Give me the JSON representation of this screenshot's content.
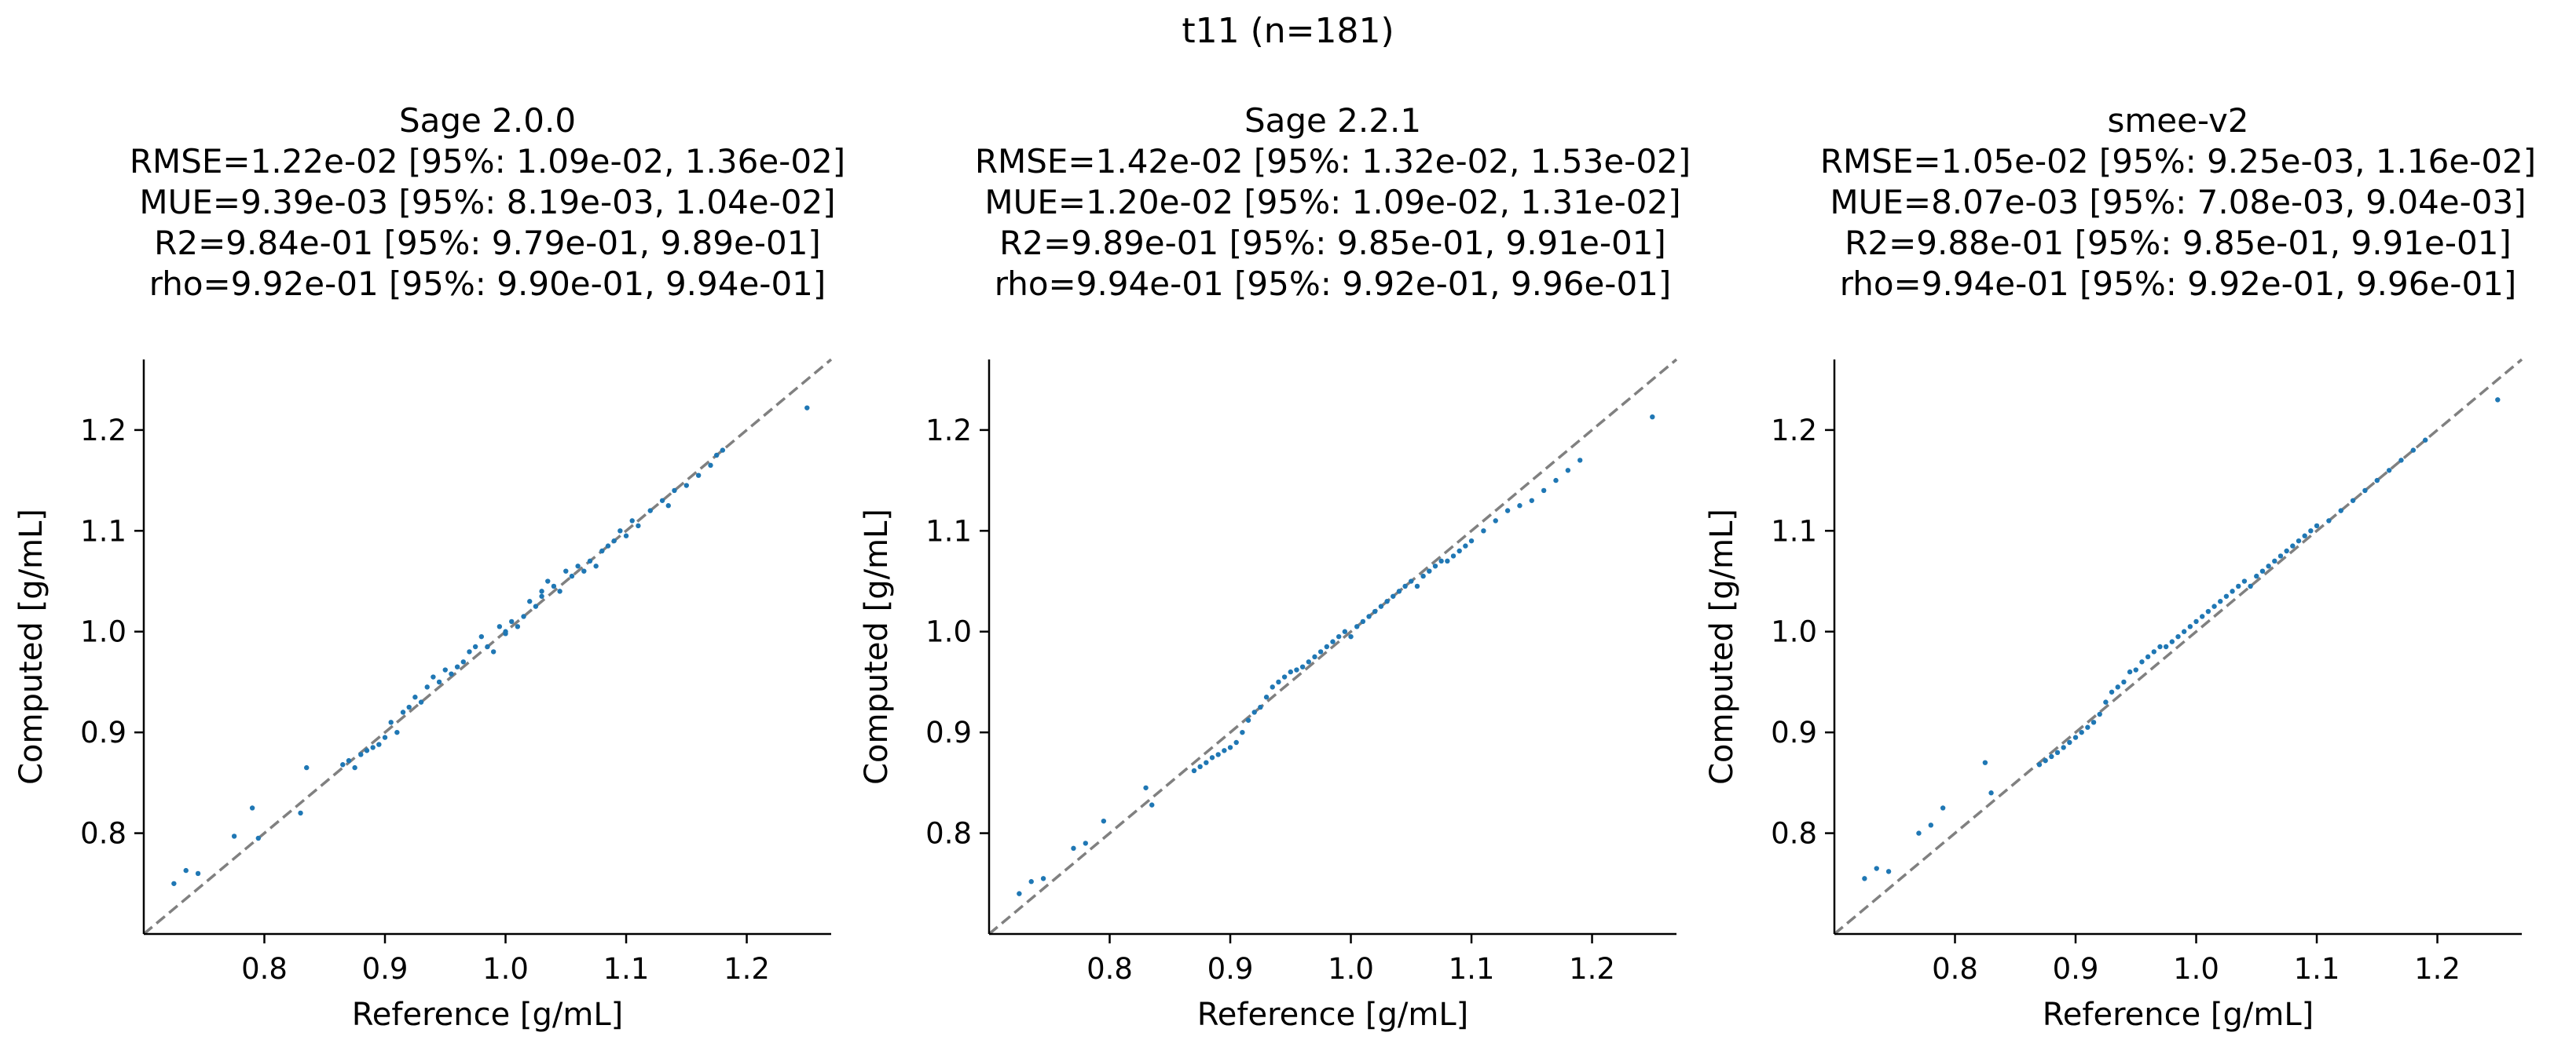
{
  "figure": {
    "suptitle": "t11 (n=181)",
    "colors": {
      "points": "#1f77b4",
      "identity_line": "#808080",
      "axes": "#000000"
    }
  },
  "chart_data": [
    {
      "type": "scatter",
      "title": "Sage 2.0.0",
      "stats": [
        "RMSE=1.22e-02 [95%: 1.09e-02, 1.36e-02]",
        "MUE=9.39e-03 [95%: 8.19e-03, 1.04e-02]",
        "R2=9.84e-01 [95%: 9.79e-01, 9.89e-01]",
        "rho=9.92e-01 [95%: 9.90e-01, 9.94e-01]"
      ],
      "xlabel": "Reference [g/mL]",
      "ylabel": "Computed [g/mL]",
      "xlim": [
        0.7,
        1.27
      ],
      "ylim": [
        0.7,
        1.27
      ],
      "xticks": [
        "0.8",
        "0.9",
        "1.0",
        "1.1",
        "1.2"
      ],
      "yticks": [
        "0.8",
        "0.9",
        "1.0",
        "1.1",
        "1.2"
      ],
      "identity_line": true,
      "grid": false,
      "x": [
        0.725,
        0.735,
        0.745,
        0.775,
        0.79,
        0.795,
        0.835,
        0.83,
        0.865,
        0.87,
        0.875,
        0.88,
        0.885,
        0.89,
        0.895,
        0.9,
        0.905,
        0.91,
        0.915,
        0.92,
        0.925,
        0.93,
        0.935,
        0.94,
        0.945,
        0.95,
        0.955,
        0.96,
        0.965,
        0.97,
        0.975,
        0.98,
        0.985,
        0.99,
        0.995,
        1.0,
        1.0,
        1.005,
        1.01,
        1.015,
        1.02,
        1.025,
        1.03,
        1.03,
        1.035,
        1.04,
        1.045,
        1.05,
        1.055,
        1.06,
        1.065,
        1.07,
        1.075,
        1.08,
        1.085,
        1.09,
        1.095,
        1.1,
        1.105,
        1.11,
        1.12,
        1.13,
        1.135,
        1.14,
        1.15,
        1.16,
        1.17,
        1.175,
        1.18,
        1.25
      ],
      "y": [
        0.75,
        0.763,
        0.76,
        0.797,
        0.825,
        0.795,
        0.865,
        0.82,
        0.868,
        0.872,
        0.865,
        0.878,
        0.882,
        0.885,
        0.888,
        0.895,
        0.91,
        0.9,
        0.92,
        0.925,
        0.935,
        0.93,
        0.945,
        0.955,
        0.95,
        0.962,
        0.958,
        0.965,
        0.97,
        0.98,
        0.985,
        0.995,
        0.985,
        0.98,
        1.005,
        1.0,
        0.998,
        1.01,
        1.005,
        1.015,
        1.03,
        1.025,
        1.035,
        1.04,
        1.05,
        1.045,
        1.04,
        1.06,
        1.055,
        1.065,
        1.06,
        1.07,
        1.065,
        1.08,
        1.085,
        1.09,
        1.1,
        1.095,
        1.11,
        1.105,
        1.12,
        1.13,
        1.125,
        1.14,
        1.145,
        1.155,
        1.165,
        1.175,
        1.18,
        1.222
      ]
    },
    {
      "type": "scatter",
      "title": "Sage 2.2.1",
      "stats": [
        "RMSE=1.42e-02 [95%: 1.32e-02, 1.53e-02]",
        "MUE=1.20e-02 [95%: 1.09e-02, 1.31e-02]",
        "R2=9.89e-01 [95%: 9.85e-01, 9.91e-01]",
        "rho=9.94e-01 [95%: 9.92e-01, 9.96e-01]"
      ],
      "xlabel": "Reference [g/mL]",
      "ylabel": "Computed [g/mL]",
      "xlim": [
        0.7,
        1.27
      ],
      "ylim": [
        0.7,
        1.27
      ],
      "xticks": [
        "0.8",
        "0.9",
        "1.0",
        "1.1",
        "1.2"
      ],
      "yticks": [
        "0.8",
        "0.9",
        "1.0",
        "1.1",
        "1.2"
      ],
      "identity_line": true,
      "grid": false,
      "x": [
        0.725,
        0.735,
        0.745,
        0.77,
        0.78,
        0.795,
        0.83,
        0.835,
        0.87,
        0.875,
        0.88,
        0.885,
        0.89,
        0.895,
        0.9,
        0.905,
        0.91,
        0.915,
        0.92,
        0.925,
        0.93,
        0.935,
        0.94,
        0.945,
        0.95,
        0.955,
        0.96,
        0.965,
        0.97,
        0.975,
        0.98,
        0.985,
        0.99,
        0.995,
        1.0,
        1.005,
        1.01,
        1.015,
        1.02,
        1.025,
        1.03,
        1.035,
        1.04,
        1.045,
        1.05,
        1.055,
        1.06,
        1.065,
        1.07,
        1.075,
        1.08,
        1.085,
        1.09,
        1.095,
        1.1,
        1.11,
        1.12,
        1.13,
        1.14,
        1.15,
        1.16,
        1.17,
        1.18,
        1.19,
        1.25
      ],
      "y": [
        0.74,
        0.752,
        0.755,
        0.785,
        0.79,
        0.812,
        0.845,
        0.828,
        0.862,
        0.866,
        0.87,
        0.875,
        0.878,
        0.882,
        0.885,
        0.89,
        0.9,
        0.912,
        0.92,
        0.925,
        0.935,
        0.945,
        0.95,
        0.955,
        0.96,
        0.962,
        0.965,
        0.97,
        0.975,
        0.98,
        0.985,
        0.99,
        0.995,
        1.0,
        0.995,
        1.005,
        1.01,
        1.015,
        1.02,
        1.025,
        1.03,
        1.035,
        1.04,
        1.045,
        1.05,
        1.045,
        1.055,
        1.06,
        1.065,
        1.07,
        1.07,
        1.075,
        1.08,
        1.085,
        1.09,
        1.1,
        1.11,
        1.12,
        1.125,
        1.13,
        1.14,
        1.15,
        1.16,
        1.17,
        1.213
      ]
    },
    {
      "type": "scatter",
      "title": "smee-v2",
      "stats": [
        "RMSE=1.05e-02 [95%: 9.25e-03, 1.16e-02]",
        "MUE=8.07e-03 [95%: 7.08e-03, 9.04e-03]",
        "R2=9.88e-01 [95%: 9.85e-01, 9.91e-01]",
        "rho=9.94e-01 [95%: 9.92e-01, 9.96e-01]"
      ],
      "xlabel": "Reference [g/mL]",
      "ylabel": "Computed [g/mL]",
      "xlim": [
        0.7,
        1.27
      ],
      "ylim": [
        0.7,
        1.27
      ],
      "xticks": [
        "0.8",
        "0.9",
        "1.0",
        "1.1",
        "1.2"
      ],
      "yticks": [
        "0.8",
        "0.9",
        "1.0",
        "1.1",
        "1.2"
      ],
      "identity_line": true,
      "grid": false,
      "x": [
        0.725,
        0.735,
        0.745,
        0.77,
        0.78,
        0.79,
        0.825,
        0.83,
        0.87,
        0.875,
        0.88,
        0.885,
        0.89,
        0.895,
        0.9,
        0.905,
        0.91,
        0.915,
        0.92,
        0.925,
        0.93,
        0.935,
        0.94,
        0.945,
        0.95,
        0.955,
        0.96,
        0.965,
        0.97,
        0.975,
        0.98,
        0.985,
        0.99,
        0.995,
        1.0,
        1.005,
        1.01,
        1.015,
        1.02,
        1.025,
        1.03,
        1.035,
        1.04,
        1.045,
        1.05,
        1.055,
        1.06,
        1.065,
        1.07,
        1.075,
        1.08,
        1.085,
        1.09,
        1.095,
        1.1,
        1.11,
        1.12,
        1.13,
        1.14,
        1.15,
        1.16,
        1.17,
        1.18,
        1.19,
        1.25
      ],
      "y": [
        0.755,
        0.765,
        0.762,
        0.8,
        0.808,
        0.825,
        0.87,
        0.84,
        0.868,
        0.872,
        0.876,
        0.88,
        0.885,
        0.89,
        0.895,
        0.9,
        0.905,
        0.91,
        0.918,
        0.93,
        0.94,
        0.945,
        0.95,
        0.96,
        0.962,
        0.97,
        0.975,
        0.98,
        0.985,
        0.985,
        0.99,
        0.995,
        1.0,
        1.005,
        1.01,
        1.015,
        1.02,
        1.025,
        1.03,
        1.035,
        1.04,
        1.045,
        1.05,
        1.045,
        1.055,
        1.06,
        1.065,
        1.07,
        1.075,
        1.08,
        1.085,
        1.09,
        1.095,
        1.1,
        1.105,
        1.11,
        1.12,
        1.13,
        1.14,
        1.15,
        1.16,
        1.17,
        1.18,
        1.19,
        1.23
      ]
    }
  ]
}
